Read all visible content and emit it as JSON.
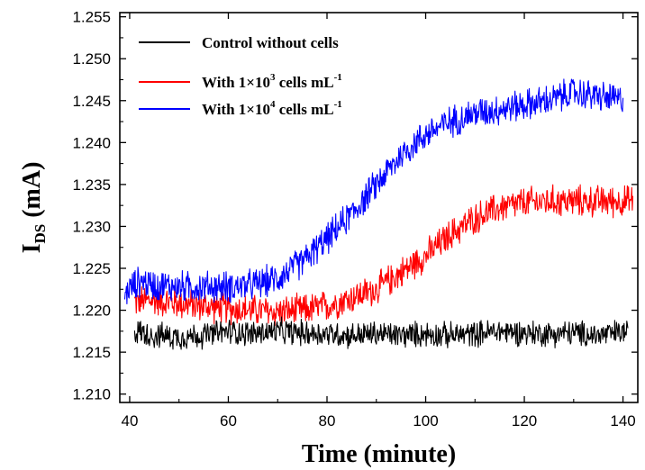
{
  "chart_data": {
    "type": "line",
    "xlabel": "Time (minute)",
    "ylabel_main": "I",
    "ylabel_sub": "DS",
    "ylabel_unit": " (mA)",
    "xlim": [
      38,
      143
    ],
    "ylim": [
      1.209,
      1.2555
    ],
    "xticks": [
      40,
      60,
      80,
      100,
      120,
      140
    ],
    "xtick_labels": [
      "40",
      "60",
      "80",
      "100",
      "120",
      "140"
    ],
    "yticks": [
      1.21,
      1.215,
      1.22,
      1.225,
      1.23,
      1.235,
      1.24,
      1.245,
      1.25,
      1.255
    ],
    "ytick_labels": [
      "1.210",
      "1.215",
      "1.220",
      "1.225",
      "1.230",
      "1.235",
      "1.240",
      "1.245",
      "1.250",
      "1.255"
    ],
    "legend_placement": "top-left",
    "series": [
      {
        "name": "Control without cells",
        "legend_main": "Control without cells",
        "legend_sup": "",
        "legend_tail": "",
        "color": "#000000",
        "x": [
          41,
          45,
          50,
          55,
          60,
          65,
          70,
          75,
          80,
          85,
          90,
          95,
          100,
          105,
          110,
          115,
          120,
          125,
          130,
          135,
          141
        ],
        "y": [
          1.2175,
          1.217,
          1.2168,
          1.217,
          1.2175,
          1.2172,
          1.2175,
          1.2173,
          1.2172,
          1.217,
          1.2172,
          1.217,
          1.2172,
          1.217,
          1.2172,
          1.2175,
          1.2173,
          1.2172,
          1.2173,
          1.217,
          1.2175
        ],
        "noise": 0.0018
      },
      {
        "name": "With 1×10^3 cells mL^-1",
        "legend_main": "With 1×10",
        "legend_sup": "3",
        "legend_tail": " cells mL",
        "legend_sup2": "-1",
        "color": "#ff0000",
        "x": [
          41,
          45,
          50,
          55,
          60,
          65,
          70,
          75,
          80,
          85,
          90,
          95,
          100,
          105,
          110,
          115,
          120,
          125,
          130,
          135,
          142
        ],
        "y": [
          1.221,
          1.2212,
          1.2208,
          1.2205,
          1.2202,
          1.22,
          1.2198,
          1.22,
          1.2205,
          1.2215,
          1.2225,
          1.2245,
          1.2265,
          1.229,
          1.231,
          1.2322,
          1.2328,
          1.233,
          1.233,
          1.233,
          1.233
        ],
        "noise": 0.0022
      },
      {
        "name": "With 1×10^4 cells mL^-1",
        "legend_main": "With 1×10",
        "legend_sup": "4",
        "legend_tail": " cells mL",
        "legend_sup2": "-1",
        "color": "#0000ff",
        "x": [
          39,
          42,
          45,
          50,
          55,
          60,
          65,
          70,
          75,
          80,
          85,
          90,
          95,
          100,
          105,
          110,
          115,
          120,
          125,
          130,
          135,
          140
        ],
        "y": [
          1.222,
          1.2235,
          1.223,
          1.2228,
          1.2228,
          1.2228,
          1.223,
          1.2238,
          1.2258,
          1.2285,
          1.2315,
          1.235,
          1.2385,
          1.241,
          1.2425,
          1.2435,
          1.244,
          1.2445,
          1.245,
          1.246,
          1.2455,
          1.245
        ],
        "noise": 0.0022
      }
    ]
  }
}
